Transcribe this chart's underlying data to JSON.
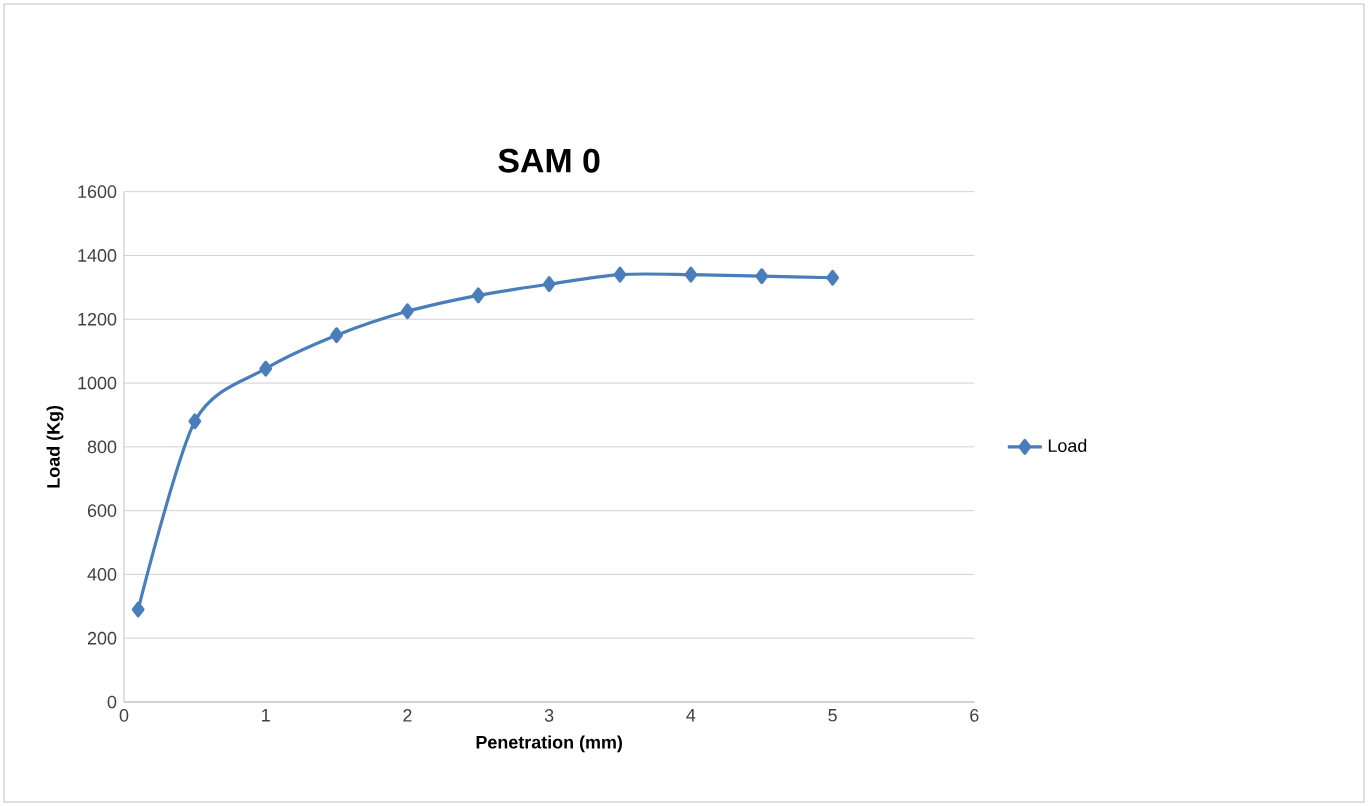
{
  "chart_data": {
    "type": "line",
    "title": "SAM 0",
    "xlabel": "Penetration (mm)",
    "ylabel": "Load (Kg)",
    "x": [
      0.1,
      0.5,
      1,
      1.5,
      2,
      2.5,
      3,
      3.5,
      4,
      4.5,
      5
    ],
    "series": [
      {
        "name": "Load",
        "color": "#4a7ebb",
        "values": [
          290,
          880,
          1045,
          1150,
          1225,
          1275,
          1310,
          1340,
          1340,
          1335,
          1330
        ]
      }
    ],
    "xlim": [
      0,
      6
    ],
    "xticks": [
      0,
      1,
      2,
      3,
      4,
      5,
      6
    ],
    "ylim": [
      0,
      1600
    ],
    "yticks": [
      0,
      200,
      400,
      600,
      800,
      1000,
      1200,
      1400,
      1600
    ],
    "grid": "y",
    "legend": "right",
    "marker": "diamond",
    "line_style": "solid"
  }
}
